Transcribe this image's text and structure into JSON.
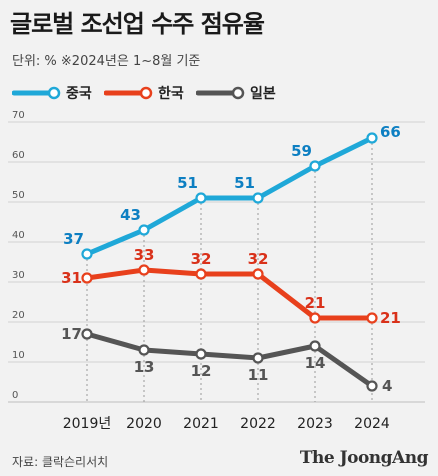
{
  "header": {
    "title": "글로벌 조선업 수주 점유율",
    "subtitle": "단위: %   ※2024년은 1~8월 기준"
  },
  "chart_data": {
    "type": "line",
    "categories": [
      "2019년",
      "2020",
      "2021",
      "2022",
      "2023",
      "2024"
    ],
    "series": [
      {
        "name": "중국",
        "color": "#1fa8d8",
        "label_color": "#0d7fc2",
        "values": [
          37,
          43,
          51,
          51,
          59,
          66
        ]
      },
      {
        "name": "한국",
        "color": "#e8401c",
        "label_color": "#d9311a",
        "values": [
          31,
          33,
          32,
          32,
          21,
          21
        ]
      },
      {
        "name": "일본",
        "color": "#555555",
        "label_color": "#555555",
        "values": [
          17,
          13,
          12,
          11,
          14,
          4
        ]
      }
    ],
    "y_ticks": [
      "0",
      "10",
      "20",
      "30",
      "40",
      "50",
      "60",
      "70"
    ],
    "ylim": [
      0,
      70
    ],
    "grid": true,
    "legend_position": "top-left"
  },
  "footer": {
    "source": "자료: 클락슨리서치",
    "brand": "The JoongAng"
  }
}
